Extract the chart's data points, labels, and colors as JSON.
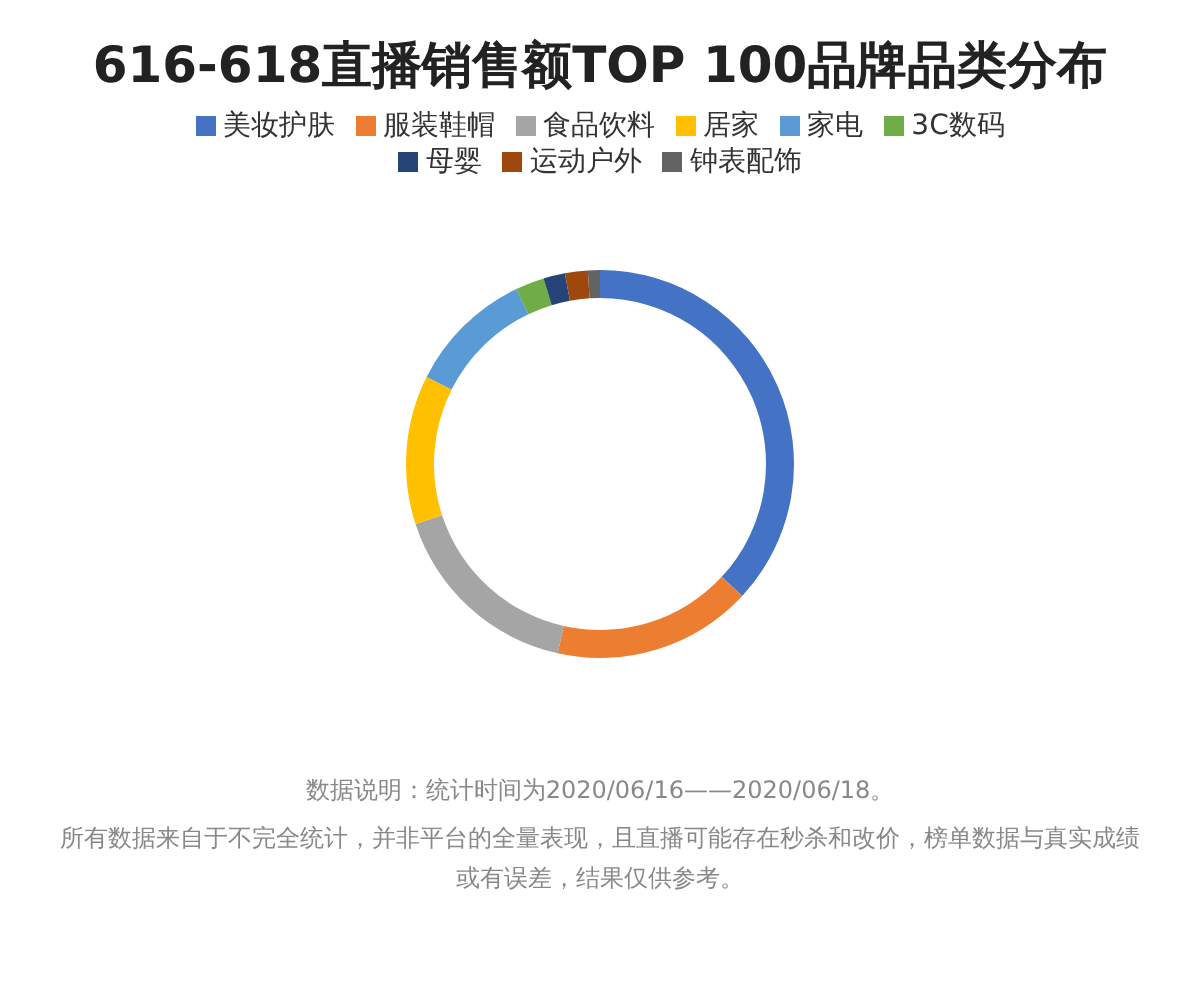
{
  "chart_data": {
    "type": "donut",
    "title": "616-618直播销售额TOP 100品牌品类分布",
    "categories": [
      "美妆护肤",
      "服装鞋帽",
      "食品饮料",
      "居家",
      "家电",
      "3C数码",
      "母婴",
      "运动户外",
      "钟表配饰"
    ],
    "values": [
      36.9,
      16.6,
      16.5,
      12.4,
      10.5,
      2.4,
      1.8,
      1.9,
      1.0
    ],
    "colors": [
      "#4472c4",
      "#ed7d31",
      "#a5a5a5",
      "#ffc000",
      "#5b9bd5",
      "#70ad47",
      "#264478",
      "#9e480e",
      "#636363"
    ],
    "legend": "top",
    "annotations": [
      "数据说明：统计时间为2020/06/16——2020/06/18。",
      "所有数据来自于不完全统计，并非平台的全量表现，且直播可能存在秒杀和改价，榜单数据与真实成绩或有误差，结果仅供参考。"
    ]
  }
}
